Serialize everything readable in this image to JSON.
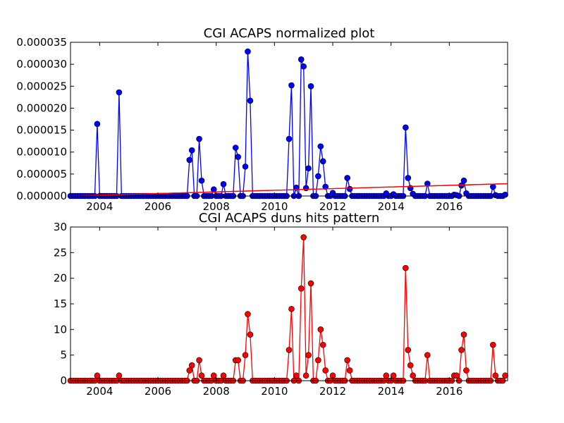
{
  "chart_data": [
    {
      "type": "line",
      "title": "CGI ACAPS normalized plot",
      "xlabel": "",
      "ylabel": "",
      "xlim": [
        2003.0,
        2018.0
      ],
      "ylim": [
        0,
        3.5e-05
      ],
      "grid": false,
      "xticks": [
        2004,
        2006,
        2008,
        2010,
        2012,
        2014,
        2016
      ],
      "xtick_labels": [
        "2004",
        "2006",
        "2008",
        "2010",
        "2012",
        "2014",
        "2016"
      ],
      "yticks": [
        0,
        5e-06,
        1e-05,
        1.5e-05,
        2e-05,
        2.5e-05,
        3e-05,
        3.5e-05
      ],
      "ytick_labels": [
        "0.000000",
        "0.000005",
        "0.000010",
        "0.000015",
        "0.000020",
        "0.000025",
        "0.000030",
        "0.000035"
      ],
      "series": [
        {
          "color": "#0000ff",
          "marker": "circle",
          "points": [
            [
              2003.92,
              1.64e-05
            ],
            [
              2004.67,
              2.36e-05
            ],
            [
              2007.08,
              8.2e-06
            ],
            [
              2007.17,
              1.04e-05
            ],
            [
              2007.42,
              1.3e-05
            ],
            [
              2007.5,
              3.5e-06
            ],
            [
              2007.92,
              1.5e-06
            ],
            [
              2008.25,
              2.7e-06
            ],
            [
              2008.67,
              1.1e-05
            ],
            [
              2008.75,
              8.9e-06
            ],
            [
              2009.0,
              6.7e-06
            ],
            [
              2009.08,
              3.29e-05
            ],
            [
              2009.17,
              2.17e-05
            ],
            [
              2010.5,
              1.3e-05
            ],
            [
              2010.58,
              2.52e-05
            ],
            [
              2010.75,
              1.9e-06
            ],
            [
              2010.92,
              3.11e-05
            ],
            [
              2011.0,
              2.95e-05
            ],
            [
              2011.08,
              1.8e-06
            ],
            [
              2011.17,
              6.3e-06
            ],
            [
              2011.25,
              2.5e-05
            ],
            [
              2011.5,
              4.5e-06
            ],
            [
              2011.58,
              1.13e-05
            ],
            [
              2011.67,
              7.9e-06
            ],
            [
              2011.75,
              2.1e-06
            ],
            [
              2012.0,
              7e-07
            ],
            [
              2012.5,
              4.1e-06
            ],
            [
              2012.58,
              1.6e-06
            ],
            [
              2013.83,
              6e-07
            ],
            [
              2014.08,
              4e-07
            ],
            [
              2014.5,
              1.56e-05
            ],
            [
              2014.58,
              4.1e-06
            ],
            [
              2014.67,
              1.8e-06
            ],
            [
              2014.75,
              5e-07
            ],
            [
              2015.25,
              2.8e-06
            ],
            [
              2016.17,
              3e-07
            ],
            [
              2016.25,
              2e-07
            ],
            [
              2016.42,
              2.4e-06
            ],
            [
              2016.5,
              3.5e-06
            ],
            [
              2016.58,
              6e-07
            ],
            [
              2017.5,
              2.1e-06
            ],
            [
              2017.58,
              2e-07
            ],
            [
              2017.92,
              3e-07
            ]
          ]
        },
        {
          "color": "#ff0000",
          "marker": "none",
          "points": [
            [
              2003.0,
              0.0
            ],
            [
              2018.0,
              2.8e-06
            ]
          ]
        }
      ]
    },
    {
      "type": "line",
      "title": "CGI ACAPS duns hits pattern",
      "xlabel": "",
      "ylabel": "",
      "xlim": [
        2003.0,
        2018.0
      ],
      "ylim": [
        0,
        30
      ],
      "grid": false,
      "xticks": [
        2004,
        2006,
        2008,
        2010,
        2012,
        2014,
        2016
      ],
      "xtick_labels": [
        "2004",
        "2006",
        "2008",
        "2010",
        "2012",
        "2014",
        "2016"
      ],
      "yticks": [
        0,
        5,
        10,
        15,
        20,
        25,
        30
      ],
      "ytick_labels": [
        "0",
        "5",
        "10",
        "15",
        "20",
        "25",
        "30"
      ],
      "series": [
        {
          "color": "#ff0000",
          "marker": "circle",
          "points": [
            [
              2003.92,
              1
            ],
            [
              2004.67,
              1
            ],
            [
              2007.08,
              2
            ],
            [
              2007.17,
              3
            ],
            [
              2007.42,
              4
            ],
            [
              2007.5,
              1
            ],
            [
              2007.92,
              1
            ],
            [
              2008.25,
              1
            ],
            [
              2008.67,
              4
            ],
            [
              2008.75,
              4
            ],
            [
              2009.0,
              5
            ],
            [
              2009.08,
              13
            ],
            [
              2009.17,
              9
            ],
            [
              2010.5,
              6
            ],
            [
              2010.58,
              14
            ],
            [
              2010.75,
              1
            ],
            [
              2010.92,
              18
            ],
            [
              2011.0,
              28
            ],
            [
              2011.08,
              1
            ],
            [
              2011.17,
              5
            ],
            [
              2011.25,
              19
            ],
            [
              2011.5,
              4
            ],
            [
              2011.58,
              10
            ],
            [
              2011.67,
              7
            ],
            [
              2011.75,
              2
            ],
            [
              2012.0,
              1
            ],
            [
              2012.5,
              4
            ],
            [
              2012.58,
              2
            ],
            [
              2013.83,
              1
            ],
            [
              2014.08,
              1
            ],
            [
              2014.5,
              22
            ],
            [
              2014.58,
              6
            ],
            [
              2014.67,
              3
            ],
            [
              2014.75,
              1
            ],
            [
              2015.25,
              5
            ],
            [
              2016.17,
              1
            ],
            [
              2016.25,
              1
            ],
            [
              2016.42,
              6
            ],
            [
              2016.5,
              9
            ],
            [
              2016.58,
              2
            ],
            [
              2017.5,
              7
            ],
            [
              2017.58,
              1
            ],
            [
              2017.92,
              1
            ]
          ]
        }
      ]
    }
  ]
}
